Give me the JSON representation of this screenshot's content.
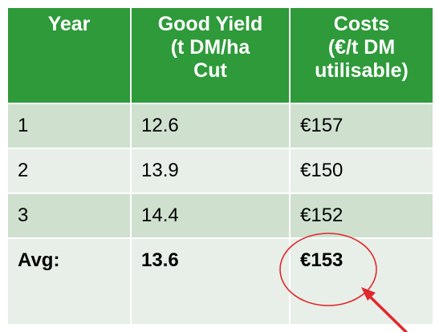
{
  "table": {
    "headers": [
      {
        "lines": [
          "Year"
        ]
      },
      {
        "lines": [
          "Good Yield",
          "(t DM/ha",
          "Cut"
        ]
      },
      {
        "lines": [
          "Costs",
          "(€/t DM",
          "utilisable)"
        ]
      }
    ],
    "rows": [
      {
        "year": "1",
        "yield": "12.6",
        "cost": "€157"
      },
      {
        "year": "2",
        "yield": "13.9",
        "cost": "€150"
      },
      {
        "year": "3",
        "yield": "14.4",
        "cost": "€152"
      }
    ],
    "average": {
      "label": "Avg:",
      "yield": "13.6",
      "cost": "€153"
    }
  },
  "colors": {
    "header_green": "#2e9a3a",
    "row_dark": "#cfe0cf",
    "row_light": "#e8efe8",
    "highlight_red": "#e0282e"
  },
  "annotation": {
    "highlight": "circle around average cost",
    "arrow": "red arrow pointing to average cost"
  }
}
